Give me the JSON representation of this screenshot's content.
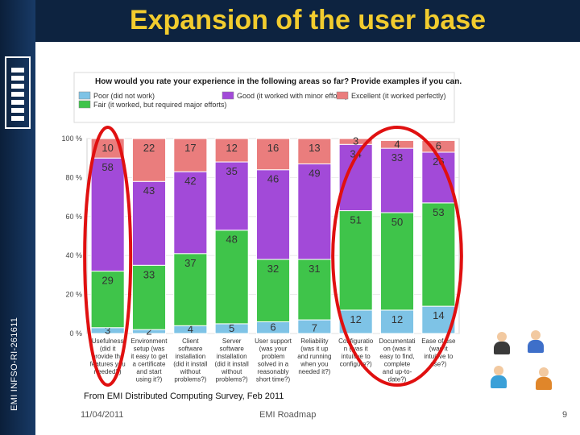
{
  "slide": {
    "title": "Expansion of the user base",
    "sidebar_code": "EMI INFSO-RI-261611",
    "source_note": "From EMI Distributed Computing Survey, Feb 2011",
    "footer_date": "11/04/2011",
    "footer_name": "EMI Roadmap",
    "page_number": "9"
  },
  "chart_data": {
    "type": "bar",
    "stacked": true,
    "percent": true,
    "title": "How would you rate your experience in the following areas so far? Provide examples if you can.",
    "ylim": [
      0,
      100
    ],
    "yticks": [
      "0 %",
      "20 %",
      "40 %",
      "60 %",
      "80 %",
      "100 %"
    ],
    "categories": [
      [
        "Usefulness",
        "(did it",
        "provide the",
        "features you",
        "needed?)"
      ],
      [
        "Environment",
        "setup (was",
        "it easy to get",
        "a certificate",
        "and start",
        "using it?)"
      ],
      [
        "Client",
        "software",
        "installation",
        "(did it install",
        "without",
        "problems?)"
      ],
      [
        "Server",
        "software",
        "installation",
        "(did it install",
        "without",
        "problems?)"
      ],
      [
        "User support",
        "(was your",
        "problem",
        "solved in a",
        "reasonably",
        "short time?)"
      ],
      [
        "Reliability",
        "(was it up",
        "and running",
        "when you",
        "needed it?)"
      ],
      [
        "Configuratio",
        "n (was it",
        "intuitive to",
        "configure?)"
      ],
      [
        "Documentati",
        "on (was it",
        "easy to find,",
        "complete",
        "and up-to-",
        "date?)"
      ],
      [
        "Ease of use",
        "(was it",
        "intuitive to",
        "use?)"
      ]
    ],
    "series": [
      {
        "name": "Poor (did not work)",
        "color": "#7ec3e6",
        "values": [
          3,
          2,
          4,
          5,
          6,
          7,
          12,
          12,
          14
        ]
      },
      {
        "name": "Fair (it worked, but required major efforts)",
        "color": "#3fc44a",
        "values": [
          29,
          33,
          37,
          48,
          32,
          31,
          51,
          50,
          53
        ]
      },
      {
        "name": "Good (it worked with minor efforts)",
        "color": "#a24ad8",
        "values": [
          58,
          43,
          42,
          35,
          46,
          49,
          34,
          33,
          26
        ]
      },
      {
        "name": "Excellent (it worked perfectly)",
        "color": "#ea7d7d",
        "values": [
          10,
          22,
          17,
          12,
          16,
          13,
          3,
          4,
          6
        ]
      }
    ],
    "legend": {
      "position": "top",
      "labels": [
        "Poor (did not work)",
        "Good (it worked with minor efforts)",
        "Excellent (it worked perfectly)",
        "Fair (it worked, but required major efforts)"
      ]
    },
    "annotations": [
      {
        "type": "ellipse",
        "color": "#e01010",
        "around": "Usefulness"
      },
      {
        "type": "ellipse",
        "color": "#e01010",
        "around": [
          "Configuratio",
          "Documentati",
          "Ease of use"
        ]
      }
    ]
  }
}
